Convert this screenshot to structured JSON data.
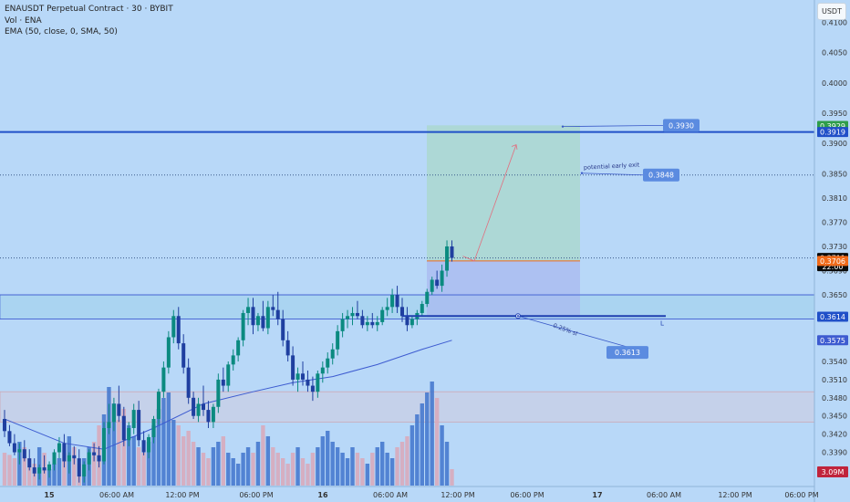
{
  "header": {
    "symbol_line": "ENAUSDT Perpetual Contract · 30 · BYBIT",
    "volume_line": "Vol · ENA",
    "ema_line": "EMA (50, close, 0, SMA, 50)"
  },
  "currency_button": "USDT",
  "colors": {
    "background": "#b8d8f8",
    "up_candle": "#0b8a80",
    "down_candle": "#1f3fa0",
    "volume_up": "#3f74cc",
    "volume_down": "#d9a8b8",
    "ema": "#3d5bd0",
    "resistance_line": "#2050c8",
    "target_box": "#a8d8c8",
    "stop_box": "#a8b8f0"
  },
  "chart_data": {
    "type": "candlestick",
    "symbol": "ENAUSDT Perpetual Contract",
    "interval": "30",
    "exchange": "BYBIT",
    "ylim": [
      0.3335,
      0.4125
    ],
    "y_ticks": [
      "0.4100",
      "0.4050",
      "0.4000",
      "0.3950",
      "0.3900",
      "0.3850",
      "0.3810",
      "0.3770",
      "0.3730",
      "0.3690",
      "0.3650",
      "0.3610",
      "0.3575",
      "0.3540",
      "0.3510",
      "0.3480",
      "0.3450",
      "0.3420",
      "0.3390",
      "0.3360"
    ],
    "x_ticks": [
      "15",
      "06:00 AM",
      "12:00 PM",
      "06:00 PM",
      "16",
      "06:00 AM",
      "12:00 PM",
      "06:00 PM",
      "17",
      "06:00 AM",
      "12:00 PM",
      "06:00 PM"
    ],
    "candles": [
      [
        0.3445,
        0.346,
        0.3415,
        0.3425
      ],
      [
        0.3425,
        0.3435,
        0.34,
        0.3405
      ],
      [
        0.3405,
        0.342,
        0.3385,
        0.339
      ],
      [
        0.339,
        0.3405,
        0.337,
        0.3395
      ],
      [
        0.3395,
        0.341,
        0.3375,
        0.338
      ],
      [
        0.338,
        0.3395,
        0.336,
        0.3365
      ],
      [
        0.3365,
        0.338,
        0.335,
        0.3355
      ],
      [
        0.3355,
        0.337,
        0.3345,
        0.3365
      ],
      [
        0.3365,
        0.3385,
        0.3355,
        0.336
      ],
      [
        0.336,
        0.3375,
        0.3348,
        0.337
      ],
      [
        0.337,
        0.3395,
        0.336,
        0.339
      ],
      [
        0.339,
        0.3415,
        0.338,
        0.3405
      ],
      [
        0.3405,
        0.342,
        0.3365,
        0.3375
      ],
      [
        0.3375,
        0.339,
        0.3355,
        0.3385
      ],
      [
        0.3385,
        0.34,
        0.337,
        0.338
      ],
      [
        0.338,
        0.3395,
        0.334,
        0.335
      ],
      [
        0.335,
        0.3375,
        0.334,
        0.337
      ],
      [
        0.337,
        0.3395,
        0.336,
        0.339
      ],
      [
        0.339,
        0.3405,
        0.3375,
        0.3385
      ],
      [
        0.3385,
        0.34,
        0.3365,
        0.3375
      ],
      [
        0.3375,
        0.344,
        0.337,
        0.343
      ],
      [
        0.343,
        0.347,
        0.342,
        0.344
      ],
      [
        0.344,
        0.348,
        0.3425,
        0.347
      ],
      [
        0.347,
        0.35,
        0.344,
        0.345
      ],
      [
        0.345,
        0.3465,
        0.34,
        0.341
      ],
      [
        0.341,
        0.344,
        0.34,
        0.343
      ],
      [
        0.343,
        0.347,
        0.342,
        0.346
      ],
      [
        0.346,
        0.3475,
        0.34,
        0.341
      ],
      [
        0.341,
        0.3425,
        0.3385,
        0.339
      ],
      [
        0.339,
        0.342,
        0.338,
        0.3415
      ],
      [
        0.3415,
        0.345,
        0.3405,
        0.3445
      ],
      [
        0.3445,
        0.3495,
        0.3435,
        0.349
      ],
      [
        0.349,
        0.354,
        0.348,
        0.353
      ],
      [
        0.353,
        0.359,
        0.352,
        0.358
      ],
      [
        0.358,
        0.3625,
        0.357,
        0.3615
      ],
      [
        0.3615,
        0.363,
        0.356,
        0.357
      ],
      [
        0.357,
        0.3585,
        0.352,
        0.353
      ],
      [
        0.353,
        0.3545,
        0.347,
        0.348
      ],
      [
        0.348,
        0.349,
        0.3445,
        0.345
      ],
      [
        0.345,
        0.348,
        0.344,
        0.347
      ],
      [
        0.347,
        0.35,
        0.345,
        0.346
      ],
      [
        0.346,
        0.3475,
        0.343,
        0.344
      ],
      [
        0.344,
        0.347,
        0.343,
        0.3465
      ],
      [
        0.3465,
        0.352,
        0.3455,
        0.351
      ],
      [
        0.351,
        0.353,
        0.349,
        0.35
      ],
      [
        0.35,
        0.354,
        0.349,
        0.3535
      ],
      [
        0.3535,
        0.356,
        0.3525,
        0.355
      ],
      [
        0.355,
        0.358,
        0.354,
        0.3575
      ],
      [
        0.3575,
        0.3625,
        0.3565,
        0.362
      ],
      [
        0.362,
        0.3645,
        0.36,
        0.363
      ],
      [
        0.363,
        0.3645,
        0.3585,
        0.36
      ],
      [
        0.36,
        0.362,
        0.359,
        0.3615
      ],
      [
        0.3615,
        0.364,
        0.359,
        0.3595
      ],
      [
        0.3595,
        0.364,
        0.3585,
        0.363
      ],
      [
        0.363,
        0.365,
        0.3615,
        0.3625
      ],
      [
        0.3625,
        0.3655,
        0.36,
        0.361
      ],
      [
        0.361,
        0.3625,
        0.3565,
        0.3575
      ],
      [
        0.3575,
        0.359,
        0.354,
        0.355
      ],
      [
        0.355,
        0.3565,
        0.35,
        0.351
      ],
      [
        0.351,
        0.353,
        0.349,
        0.352
      ],
      [
        0.352,
        0.354,
        0.35,
        0.351
      ],
      [
        0.351,
        0.3525,
        0.349,
        0.35
      ],
      [
        0.35,
        0.3515,
        0.3475,
        0.349
      ],
      [
        0.349,
        0.3525,
        0.348,
        0.352
      ],
      [
        0.352,
        0.354,
        0.3505,
        0.353
      ],
      [
        0.353,
        0.3555,
        0.352,
        0.3545
      ],
      [
        0.3545,
        0.357,
        0.3535,
        0.356
      ],
      [
        0.356,
        0.36,
        0.355,
        0.359
      ],
      [
        0.359,
        0.362,
        0.358,
        0.361
      ],
      [
        0.361,
        0.3625,
        0.3595,
        0.3615
      ],
      [
        0.3615,
        0.363,
        0.36,
        0.362
      ],
      [
        0.362,
        0.364,
        0.361,
        0.3615
      ],
      [
        0.3615,
        0.3625,
        0.3595,
        0.36
      ],
      [
        0.36,
        0.3615,
        0.359,
        0.3605
      ],
      [
        0.3605,
        0.362,
        0.3595,
        0.36
      ],
      [
        0.36,
        0.3615,
        0.359,
        0.3605
      ],
      [
        0.3605,
        0.363,
        0.36,
        0.3625
      ],
      [
        0.3625,
        0.3645,
        0.3615,
        0.363
      ],
      [
        0.363,
        0.366,
        0.362,
        0.365
      ],
      [
        0.365,
        0.3665,
        0.362,
        0.363
      ],
      [
        0.363,
        0.3645,
        0.3605,
        0.3615
      ],
      [
        0.3615,
        0.363,
        0.359,
        0.36
      ],
      [
        0.36,
        0.3615,
        0.3595,
        0.361
      ],
      [
        0.361,
        0.3625,
        0.36,
        0.362
      ],
      [
        0.362,
        0.364,
        0.3615,
        0.3635
      ],
      [
        0.3635,
        0.366,
        0.363,
        0.3655
      ],
      [
        0.3655,
        0.368,
        0.365,
        0.3675
      ],
      [
        0.3675,
        0.369,
        0.366,
        0.3665
      ],
      [
        0.3665,
        0.37,
        0.3655,
        0.369
      ],
      [
        0.369,
        0.374,
        0.368,
        0.373
      ],
      [
        0.373,
        0.374,
        0.3705,
        0.3711
      ]
    ],
    "volume_max": "3.09M",
    "volume": [
      0.3,
      0.28,
      0.25,
      0.4,
      0.35,
      0.25,
      0.2,
      0.35,
      0.3,
      0.15,
      0.2,
      0.25,
      0.3,
      0.45,
      0.35,
      0.2,
      0.25,
      0.35,
      0.4,
      0.55,
      0.65,
      0.9,
      0.75,
      0.6,
      0.7,
      0.55,
      0.45,
      0.35,
      0.3,
      0.4,
      0.55,
      0.7,
      0.8,
      0.85,
      0.6,
      0.55,
      0.45,
      0.5,
      0.4,
      0.35,
      0.3,
      0.25,
      0.35,
      0.4,
      0.45,
      0.3,
      0.25,
      0.2,
      0.3,
      0.35,
      0.3,
      0.4,
      0.55,
      0.45,
      0.35,
      0.3,
      0.25,
      0.2,
      0.3,
      0.35,
      0.25,
      0.2,
      0.3,
      0.35,
      0.45,
      0.5,
      0.4,
      0.35,
      0.3,
      0.25,
      0.35,
      0.3,
      0.25,
      0.2,
      0.3,
      0.35,
      0.4,
      0.3,
      0.25,
      0.35,
      0.4,
      0.45,
      0.55,
      0.65,
      0.75,
      0.85,
      0.95,
      0.8,
      0.55,
      0.4,
      0.15
    ],
    "ema": [
      [
        0,
        0.3445
      ],
      [
        12,
        0.3405
      ],
      [
        20,
        0.3395
      ],
      [
        30,
        0.343
      ],
      [
        40,
        0.347
      ],
      [
        50,
        0.349
      ],
      [
        58,
        0.3505
      ],
      [
        66,
        0.3515
      ],
      [
        75,
        0.3535
      ],
      [
        84,
        0.356
      ],
      [
        90,
        0.3575
      ]
    ],
    "horizontal_levels": [
      {
        "price": 0.3919,
        "label": "0.3919",
        "style": "solid-thick"
      },
      {
        "price": 0.3848,
        "label": "",
        "style": "dotted"
      },
      {
        "price": 0.3711,
        "label": "",
        "style": "dotted"
      },
      {
        "price": 0.365,
        "label": "",
        "style": "solid-thin"
      },
      {
        "price": 0.361,
        "label": "",
        "style": "solid-thin"
      }
    ],
    "zones": [
      {
        "from": 0.361,
        "to": 0.365
      },
      {
        "from": 0.344,
        "to": 0.349
      }
    ],
    "position": {
      "entry": 0.3706,
      "target": 0.393,
      "stop": 0.3613
    },
    "support_line": {
      "price": 0.3615,
      "label": "L"
    },
    "callouts": [
      {
        "price": 0.393,
        "text": "0.3930"
      },
      {
        "price": 0.3848,
        "text": "0.3848",
        "note": "potential early exit"
      },
      {
        "price": 0.3555,
        "text": "0.3613",
        "note": "0.25% sl"
      }
    ],
    "axis_price_labels": [
      {
        "price": 0.3929,
        "text": "0.3929",
        "color": "#2e9e4a"
      },
      {
        "price": 0.3919,
        "text": "0.3919",
        "color": "#2050c8"
      },
      {
        "price": 0.3711,
        "text": "0.3711",
        "sub": "22:00",
        "color": "#0a0a0a"
      },
      {
        "price": 0.3706,
        "text": "0.3706",
        "color": "#f06a1a"
      },
      {
        "price": 0.3614,
        "text": "0.3614",
        "color": "#2050c8"
      },
      {
        "price": 0.3575,
        "text": "0.3575",
        "color": "#3d5bd0"
      }
    ]
  }
}
